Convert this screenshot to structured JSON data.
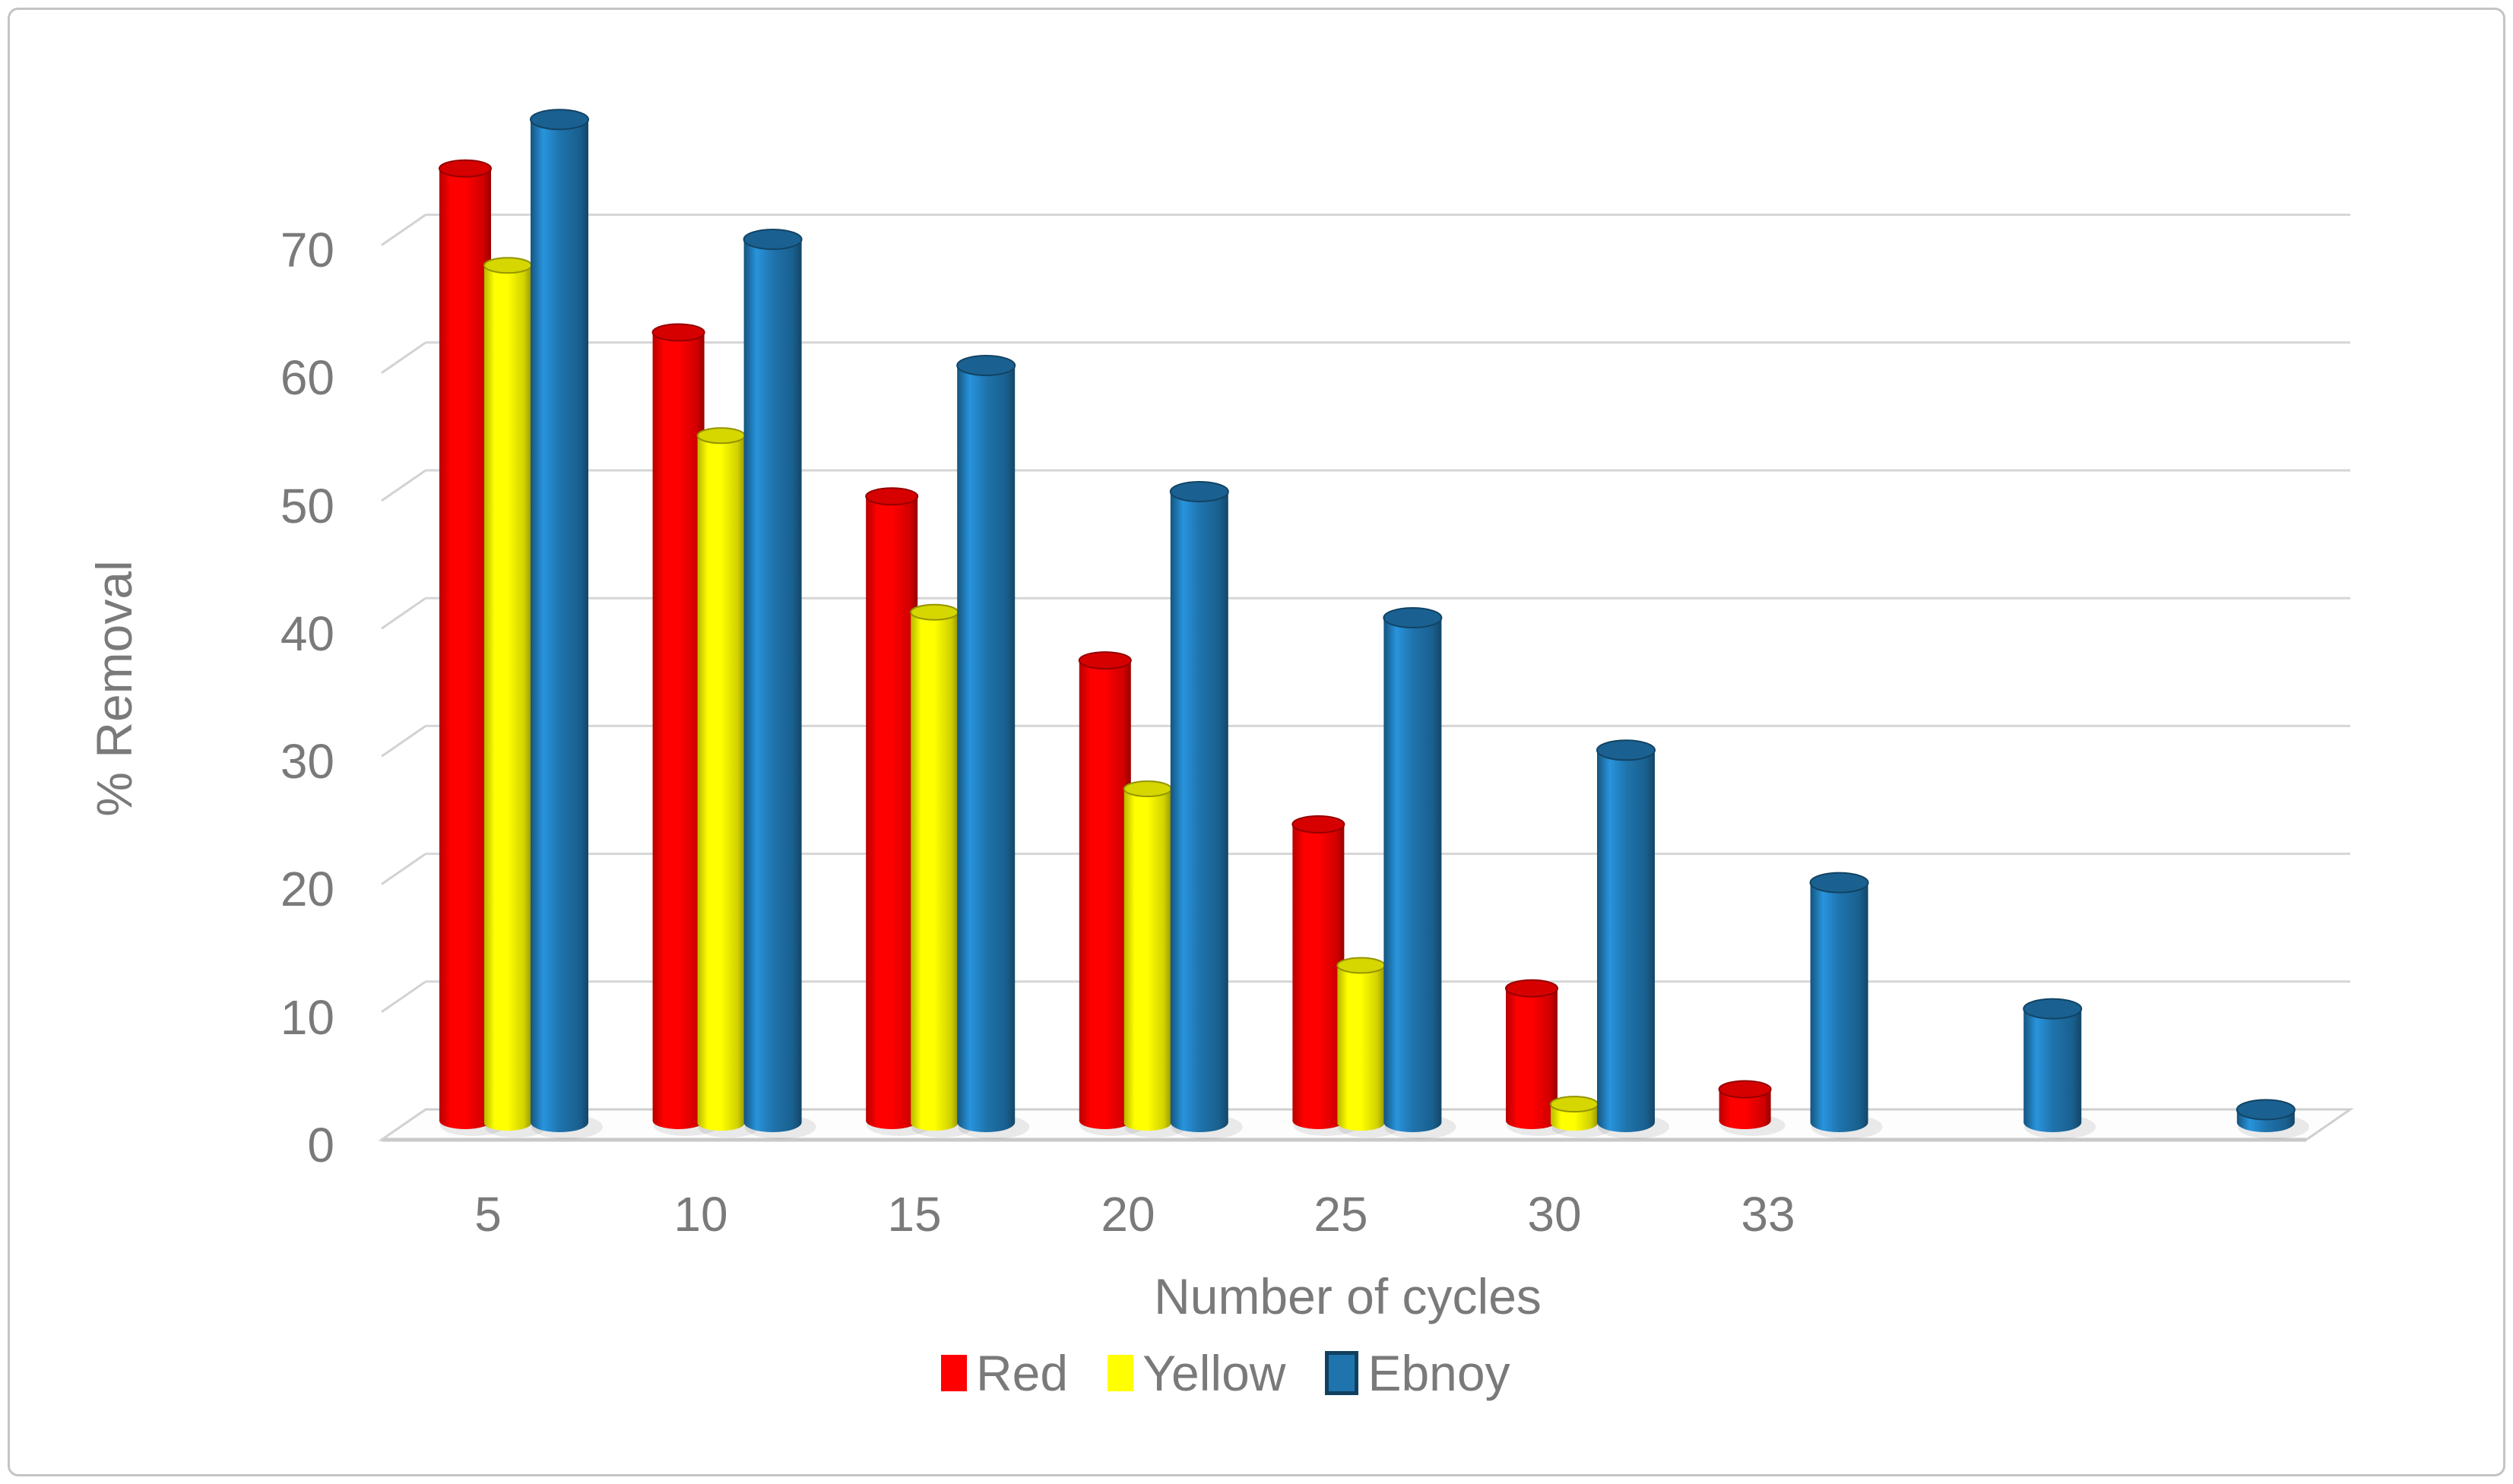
{
  "chart_data": {
    "type": "bar",
    "style": "3d-cylinder",
    "title": "",
    "xlabel": "Number of cycles",
    "ylabel": "% Removal",
    "categories": [
      "5",
      "10",
      "15",
      "20",
      "25",
      "30",
      "33",
      "",
      ""
    ],
    "x_tick_labels": [
      "5",
      "10",
      "15",
      "20",
      "25",
      "30",
      "33"
    ],
    "y_tick_labels": [
      "0",
      "10",
      "20",
      "30",
      "40",
      "50",
      "60",
      "70"
    ],
    "ylim": [
      0,
      80
    ],
    "grid": true,
    "legend_position": "bottom",
    "axis_text_color": "#7a7a7a",
    "gridline_color": "#d6d6d6",
    "series": [
      {
        "name": "Red",
        "color": "#ff0000",
        "values": [
          75.5,
          62.5,
          49.5,
          36.5,
          23.5,
          10.5,
          2.5,
          null,
          null
        ]
      },
      {
        "name": "Yellow",
        "color": "#ffff00",
        "values": [
          68,
          54.5,
          40.5,
          26.5,
          12.5,
          1.5,
          null,
          null,
          null
        ]
      },
      {
        "name": "Ebnoy",
        "color": "#1f74ad",
        "values": [
          79.5,
          70,
          60,
          50,
          40,
          29.5,
          19,
          9,
          1
        ]
      }
    ]
  }
}
